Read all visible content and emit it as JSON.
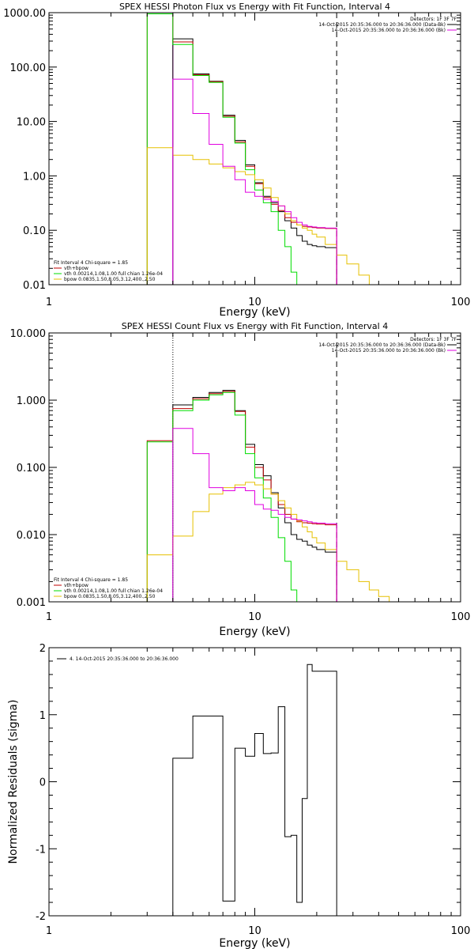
{
  "colors": {
    "total": "#000000",
    "fit": "#c00000",
    "vth": "#00dd00",
    "bpow": "#e6c000",
    "bk": "#e000e0"
  },
  "chart_data": [
    {
      "type": "line",
      "title": "SPEX HESSI Photon Flux vs Energy with Fit Function, Interval 4",
      "xlabel": "Energy (keV)",
      "ylabel": "",
      "xscale": "log",
      "yscale": "log",
      "xlim": [
        1,
        100
      ],
      "ylim": [
        0.01,
        1000
      ],
      "xticks": [
        1,
        10,
        100
      ],
      "xtick_labels": [
        "1",
        "10",
        "100"
      ],
      "yticks": [
        0.01,
        0.1,
        1,
        10,
        100,
        1000
      ],
      "ytick_labels": [
        "0.01",
        "0.10",
        "1.00",
        "10.00",
        "100.00",
        "1000.00"
      ],
      "vlines": [
        {
          "x": 4.0,
          "style": "solid",
          "color": "bk"
        },
        {
          "x": 25.0,
          "style": "dashed",
          "color": "total"
        }
      ],
      "header_lines": [
        "Detectors: 1F 3F 7F",
        "14-Oct-2015 20:35:36.000 to 20:36:36.000 (Data-Bk)",
        "14-Oct-2015 20:35:36.000 to 20:36:36.000 (Bk)"
      ],
      "legend_lines": [
        "Fit Interval  4    Chi-square = 1.85",
        "vth+bpow",
        "vth 0.00214,1.08,1.00  full chian 1.26e-04",
        "bpow 0.0835,1.50,8.05,3.12,400.,2.50"
      ],
      "edges": [
        3.0,
        4.0,
        5.0,
        6.0,
        7.0,
        8.0,
        9.0,
        10.0,
        11.0,
        12.0,
        13.0,
        14.0,
        15.0,
        16.0,
        17.0,
        18.0,
        19.0,
        20.0,
        22.0,
        25.0,
        28.0,
        32.0,
        36.0
      ],
      "series": [
        {
          "color": "total",
          "values": [
            null,
            330,
            75,
            55,
            13,
            4.5,
            1.6,
            0.75,
            0.42,
            0.32,
            0.22,
            0.15,
            0.11,
            0.08,
            0.063,
            0.055,
            0.052,
            0.05,
            0.048,
            null,
            null,
            null
          ]
        },
        {
          "color": "fit",
          "values": [
            950,
            290,
            72,
            54,
            12.5,
            4.2,
            1.5,
            0.72,
            0.4,
            0.3,
            0.23,
            0.17,
            0.14,
            0.125,
            0.118,
            0.115,
            0.112,
            0.11,
            0.108,
            null,
            null,
            null
          ]
        },
        {
          "color": "vth",
          "values": [
            950,
            260,
            70,
            52,
            12,
            4.0,
            1.3,
            0.55,
            0.32,
            0.22,
            0.1,
            0.05,
            0.017,
            0.01,
            null,
            null,
            null,
            null,
            null,
            null,
            null,
            null
          ]
        },
        {
          "color": "bpow",
          "values": [
            3.3,
            2.4,
            2.0,
            1.65,
            1.4,
            1.2,
            1.05,
            0.85,
            0.6,
            0.4,
            0.28,
            0.2,
            0.15,
            0.125,
            0.11,
            0.1,
            0.085,
            0.075,
            0.055,
            0.035,
            0.024,
            0.015
          ]
        },
        {
          "color": "bk",
          "values": [
            null,
            60,
            14,
            3.8,
            1.5,
            0.85,
            0.5,
            0.42,
            0.37,
            0.34,
            0.28,
            0.22,
            0.17,
            0.14,
            0.125,
            0.118,
            0.115,
            0.112,
            0.11,
            0.01,
            null,
            null
          ]
        }
      ]
    },
    {
      "type": "line",
      "title": "SPEX HESSI Count Flux vs Energy with Fit Function, Interval 4",
      "xlabel": "Energy (keV)",
      "ylabel": "",
      "xscale": "log",
      "yscale": "log",
      "xlim": [
        1,
        100
      ],
      "ylim": [
        0.001,
        10
      ],
      "xticks": [
        1,
        10,
        100
      ],
      "xtick_labels": [
        "1",
        "10",
        "100"
      ],
      "yticks": [
        0.001,
        0.01,
        0.1,
        1,
        10
      ],
      "ytick_labels": [
        "0.001",
        "0.010",
        "0.100",
        "1.000",
        "10.000"
      ],
      "vlines": [
        {
          "x": 4.0,
          "style": "dotted",
          "color": "total"
        },
        {
          "x": 25.0,
          "style": "dashed",
          "color": "total"
        }
      ],
      "header_lines": [
        "Detectors: 1F 3F 7F",
        "14-Oct-2015 20:35:36.000 to 20:36:36.000 (Data-Bk)",
        "14-Oct-2015 20:35:36.000 to 20:36:36.000 (Bk)"
      ],
      "legend_lines": [
        "Fit Interval  4    Chi-square = 1.85",
        "vth+bpow",
        "vth 0.00214,1.08,1.00  full chian 1.26e-04",
        "bpow 0.0835,1.50,8.05,3.12,400.,2.50"
      ],
      "edges": [
        3.0,
        4.0,
        5.0,
        6.0,
        7.0,
        8.0,
        9.0,
        10.0,
        11.0,
        12.0,
        13.0,
        14.0,
        15.0,
        16.0,
        17.0,
        18.0,
        19.0,
        20.0,
        22.0,
        25.0,
        28.0,
        32.0,
        36.0,
        40.0,
        45.0
      ],
      "series": [
        {
          "color": "total",
          "values": [
            null,
            0.85,
            1.1,
            1.3,
            1.4,
            0.7,
            0.22,
            0.11,
            0.075,
            0.042,
            0.025,
            0.015,
            0.01,
            0.0085,
            0.008,
            0.007,
            0.0065,
            0.006,
            0.0055,
            null,
            null,
            null,
            null,
            null
          ]
        },
        {
          "color": "fit",
          "values": [
            0.25,
            0.75,
            1.05,
            1.25,
            1.35,
            0.68,
            0.2,
            0.1,
            0.065,
            0.04,
            0.028,
            0.02,
            0.017,
            0.0155,
            0.015,
            0.0148,
            0.0145,
            0.0143,
            0.014,
            null,
            null,
            null,
            null,
            null
          ]
        },
        {
          "color": "vth",
          "values": [
            0.24,
            0.7,
            1.0,
            1.2,
            1.3,
            0.6,
            0.16,
            0.07,
            0.035,
            0.018,
            0.009,
            0.004,
            0.0015,
            0.001,
            null,
            null,
            null,
            null,
            null,
            null,
            null,
            null,
            null,
            null
          ]
        },
        {
          "color": "bpow",
          "values": [
            0.005,
            0.0095,
            0.022,
            0.04,
            0.05,
            0.055,
            0.06,
            0.055,
            0.048,
            0.04,
            0.032,
            0.025,
            0.02,
            0.016,
            0.013,
            0.011,
            0.009,
            0.0075,
            0.006,
            0.004,
            0.003,
            0.002,
            0.0015,
            0.0012
          ]
        },
        {
          "color": "bk",
          "values": [
            null,
            0.38,
            0.16,
            0.05,
            0.045,
            0.05,
            0.045,
            0.028,
            0.024,
            0.023,
            0.02,
            0.018,
            0.017,
            0.0165,
            0.016,
            0.0155,
            0.015,
            0.0148,
            0.0145,
            0.001,
            null,
            null,
            null,
            null
          ]
        }
      ]
    },
    {
      "type": "line",
      "title": "",
      "xlabel": "Energy (keV)",
      "ylabel": "Normalized Residuals (sigma)",
      "xscale": "log",
      "yscale": "linear",
      "xlim": [
        1,
        100
      ],
      "ylim": [
        -2,
        2
      ],
      "xticks": [
        1,
        10,
        100
      ],
      "xtick_labels": [
        "1",
        "10",
        "100"
      ],
      "yticks": [
        -2,
        -1,
        0,
        1,
        2
      ],
      "ytick_labels": [
        "-2",
        "-1",
        "0",
        "1",
        "2"
      ],
      "legend_lines": [
        "4. 14-Oct-2015 20:35:36.000 to 20:36:36.000"
      ],
      "edges": [
        4.0,
        5.0,
        6.0,
        7.0,
        8.0,
        9.0,
        10.0,
        11.0,
        12.0,
        13.0,
        14.0,
        15.0,
        16.0,
        17.0,
        18.0,
        19.0,
        20.0,
        22.0,
        25.0
      ],
      "series": [
        {
          "color": "total",
          "values": [
            0.35,
            0.98,
            0.98,
            -1.78,
            0.5,
            0.38,
            0.72,
            0.42,
            0.43,
            1.12,
            -0.82,
            -0.8,
            -1.8,
            -0.25,
            1.75,
            1.65,
            1.65,
            1.65
          ]
        }
      ]
    }
  ]
}
